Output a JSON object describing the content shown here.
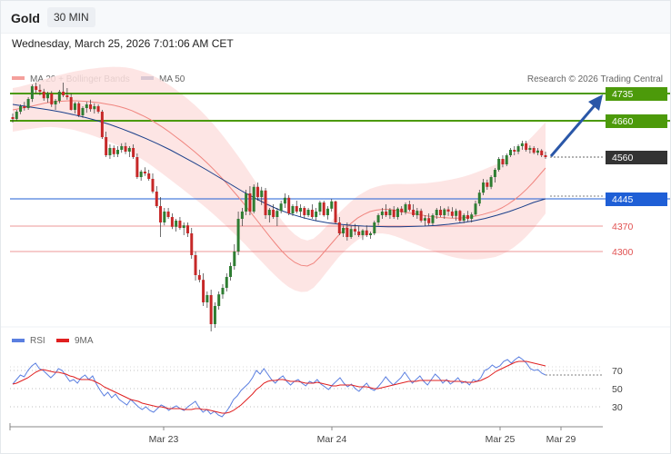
{
  "header": {
    "symbol": "Gold",
    "timeframe": "30 MIN",
    "datetime": "Wednesday, March 25, 2026 7:01:06 AM CET"
  },
  "chart_data": [
    {
      "type": "candlestick",
      "legend": [
        {
          "name": "MA 20 + Bollinger Bands",
          "color": "#f4a09c"
        },
        {
          "name": "MA 50",
          "color": "#1a3f8a"
        }
      ],
      "watermark": "Research © 2026 Trading Central",
      "ylim": [
        4040,
        4800
      ],
      "last_price": 4560,
      "levels": [
        {
          "label": "4735",
          "value": 4735,
          "color": "#4c9a0a",
          "style": "resistance"
        },
        {
          "label": "4660",
          "value": 4660,
          "color": "#4c9a0a",
          "style": "resistance"
        },
        {
          "label": "4560",
          "value": 4560,
          "color": "#333333",
          "style": "last"
        },
        {
          "label": "4445",
          "value": 4445,
          "color": "#1f5fd6",
          "style": "pivot"
        },
        {
          "label": "4370",
          "value": 4370,
          "color": "#e15252",
          "style": "support"
        },
        {
          "label": "4300",
          "value": 4300,
          "color": "#e15252",
          "style": "support"
        }
      ],
      "candles": [
        [
          4670,
          4680,
          4655,
          4665
        ],
        [
          4665,
          4690,
          4660,
          4685
        ],
        [
          4685,
          4705,
          4678,
          4700
        ],
        [
          4700,
          4712,
          4688,
          4695
        ],
        [
          4695,
          4725,
          4690,
          4720
        ],
        [
          4720,
          4760,
          4712,
          4755
        ],
        [
          4755,
          4765,
          4735,
          4745
        ],
        [
          4745,
          4760,
          4730,
          4740
        ],
        [
          4740,
          4748,
          4715,
          4722
        ],
        [
          4722,
          4740,
          4710,
          4735
        ],
        [
          4735,
          4742,
          4698,
          4705
        ],
        [
          4705,
          4720,
          4690,
          4715
        ],
        [
          4715,
          4745,
          4708,
          4740
        ],
        [
          4740,
          4765,
          4725,
          4730
        ],
        [
          4730,
          4750,
          4718,
          4725
        ],
        [
          4725,
          4735,
          4688,
          4690
        ],
        [
          4690,
          4712,
          4680,
          4708
        ],
        [
          4708,
          4712,
          4670,
          4675
        ],
        [
          4675,
          4700,
          4668,
          4695
        ],
        [
          4695,
          4712,
          4682,
          4705
        ],
        [
          4705,
          4718,
          4685,
          4692
        ],
        [
          4692,
          4708,
          4680,
          4700
        ],
        [
          4700,
          4705,
          4680,
          4685
        ],
        [
          4685,
          4690,
          4610,
          4615
        ],
        [
          4615,
          4630,
          4560,
          4565
        ],
        [
          4565,
          4595,
          4555,
          4585
        ],
        [
          4585,
          4592,
          4560,
          4568
        ],
        [
          4568,
          4590,
          4560,
          4580
        ],
        [
          4580,
          4598,
          4572,
          4590
        ],
        [
          4590,
          4600,
          4568,
          4575
        ],
        [
          4575,
          4590,
          4560,
          4585
        ],
        [
          4585,
          4595,
          4555,
          4560
        ],
        [
          4560,
          4570,
          4500,
          4505
        ],
        [
          4505,
          4525,
          4495,
          4520
        ],
        [
          4520,
          4532,
          4508,
          4515
        ],
        [
          4515,
          4525,
          4495,
          4500
        ],
        [
          4500,
          4515,
          4460,
          4465
        ],
        [
          4465,
          4480,
          4420,
          4425
        ],
        [
          4425,
          4450,
          4340,
          4380
        ],
        [
          4380,
          4420,
          4372,
          4410
        ],
        [
          4410,
          4420,
          4390,
          4395
        ],
        [
          4395,
          4405,
          4362,
          4368
        ],
        [
          4368,
          4390,
          4355,
          4385
        ],
        [
          4385,
          4395,
          4360,
          4365
        ],
        [
          4365,
          4380,
          4345,
          4372
        ],
        [
          4372,
          4380,
          4340,
          4350
        ],
        [
          4350,
          4365,
          4280,
          4290
        ],
        [
          4290,
          4300,
          4220,
          4235
        ],
        [
          4235,
          4250,
          4215,
          4222
        ],
        [
          4222,
          4240,
          4150,
          4160
        ],
        [
          4160,
          4190,
          4145,
          4180
        ],
        [
          4180,
          4195,
          4080,
          4100
        ],
        [
          4100,
          4160,
          4090,
          4150
        ],
        [
          4150,
          4190,
          4140,
          4182
        ],
        [
          4182,
          4210,
          4170,
          4200
        ],
        [
          4200,
          4240,
          4190,
          4230
        ],
        [
          4230,
          4270,
          4220,
          4260
        ],
        [
          4260,
          4320,
          4250,
          4300
        ],
        [
          4300,
          4410,
          4290,
          4390
        ],
        [
          4390,
          4420,
          4370,
          4410
        ],
        [
          4410,
          4470,
          4400,
          4460
        ],
        [
          4460,
          4480,
          4400,
          4410
        ],
        [
          4410,
          4485,
          4405,
          4478
        ],
        [
          4478,
          4490,
          4440,
          4450
        ],
        [
          4450,
          4478,
          4428,
          4468
        ],
        [
          4468,
          4475,
          4390,
          4400
        ],
        [
          4400,
          4420,
          4380,
          4415
        ],
        [
          4415,
          4430,
          4390,
          4395
        ],
        [
          4395,
          4420,
          4370,
          4412
        ],
        [
          4412,
          4440,
          4405,
          4432
        ],
        [
          4432,
          4460,
          4420,
          4448
        ],
        [
          4448,
          4455,
          4400,
          4405
        ],
        [
          4405,
          4430,
          4398,
          4425
        ],
        [
          4425,
          4440,
          4405,
          4410
        ],
        [
          4410,
          4430,
          4396,
          4420
        ],
        [
          4420,
          4425,
          4390,
          4400
        ],
        [
          4400,
          4420,
          4395,
          4415
        ],
        [
          4415,
          4430,
          4390,
          4395
        ],
        [
          4395,
          4420,
          4385,
          4410
        ],
        [
          4410,
          4440,
          4400,
          4435
        ],
        [
          4435,
          4440,
          4396,
          4400
        ],
        [
          4400,
          4425,
          4388,
          4418
        ],
        [
          4418,
          4445,
          4410,
          4438
        ],
        [
          4438,
          4440,
          4375,
          4380
        ],
        [
          4380,
          4395,
          4345,
          4350
        ],
        [
          4350,
          4372,
          4340,
          4365
        ],
        [
          4365,
          4380,
          4330,
          4340
        ],
        [
          4340,
          4370,
          4335,
          4362
        ],
        [
          4362,
          4376,
          4345,
          4355
        ],
        [
          4355,
          4370,
          4340,
          4345
        ],
        [
          4345,
          4362,
          4332,
          4358
        ],
        [
          4358,
          4372,
          4340,
          4345
        ],
        [
          4345,
          4355,
          4335,
          4350
        ],
        [
          4350,
          4385,
          4345,
          4380
        ],
        [
          4380,
          4405,
          4372,
          4400
        ],
        [
          4400,
          4420,
          4390,
          4410
        ],
        [
          4410,
          4430,
          4395,
          4400
        ],
        [
          4400,
          4420,
          4390,
          4415
        ],
        [
          4415,
          4425,
          4390,
          4395
        ],
        [
          4395,
          4422,
          4388,
          4418
        ],
        [
          4418,
          4425,
          4400,
          4408
        ],
        [
          4408,
          4435,
          4402,
          4430
        ],
        [
          4430,
          4440,
          4410,
          4415
        ],
        [
          4415,
          4430,
          4395,
          4400
        ],
        [
          4400,
          4420,
          4390,
          4412
        ],
        [
          4412,
          4418,
          4380,
          4385
        ],
        [
          4385,
          4400,
          4370,
          4392
        ],
        [
          4392,
          4405,
          4372,
          4378
        ],
        [
          4378,
          4405,
          4372,
          4400
        ],
        [
          4400,
          4420,
          4390,
          4415
        ],
        [
          4415,
          4425,
          4395,
          4400
        ],
        [
          4400,
          4420,
          4390,
          4416
        ],
        [
          4416,
          4424,
          4398,
          4410
        ],
        [
          4410,
          4422,
          4392,
          4398
        ],
        [
          4398,
          4418,
          4385,
          4412
        ],
        [
          4412,
          4415,
          4380,
          4385
        ],
        [
          4385,
          4405,
          4378,
          4400
        ],
        [
          4400,
          4412,
          4382,
          4390
        ],
        [
          4390,
          4408,
          4380,
          4402
        ],
        [
          4402,
          4440,
          4398,
          4432
        ],
        [
          4432,
          4470,
          4425,
          4462
        ],
        [
          4462,
          4500,
          4455,
          4490
        ],
        [
          4490,
          4498,
          4470,
          4478
        ],
        [
          4478,
          4510,
          4472,
          4505
        ],
        [
          4505,
          4530,
          4490,
          4525
        ],
        [
          4525,
          4560,
          4520,
          4555
        ],
        [
          4555,
          4565,
          4532,
          4540
        ],
        [
          4540,
          4570,
          4535,
          4565
        ],
        [
          4565,
          4585,
          4560,
          4580
        ],
        [
          4580,
          4590,
          4565,
          4575
        ],
        [
          4575,
          4595,
          4568,
          4590
        ],
        [
          4590,
          4605,
          4580,
          4598
        ],
        [
          4598,
          4605,
          4575,
          4580
        ],
        [
          4580,
          4592,
          4570,
          4585
        ],
        [
          4585,
          4590,
          4568,
          4572
        ],
        [
          4572,
          4585,
          4565,
          4578
        ],
        [
          4578,
          4582,
          4560,
          4565
        ],
        [
          4565,
          4575,
          4555,
          4560
        ]
      ],
      "ma20": [
        4690,
        4693,
        4697,
        4700,
        4704,
        4708,
        4711,
        4713,
        4714,
        4715,
        4715,
        4714,
        4713,
        4711,
        4709,
        4706,
        4703,
        4699,
        4694,
        4688,
        4680,
        4672,
        4663,
        4652,
        4641,
        4629,
        4616,
        4603,
        4589,
        4575,
        4560,
        4544,
        4527,
        4509,
        4490,
        4470,
        4450,
        4429,
        4407,
        4385,
        4363,
        4341,
        4320,
        4300,
        4283,
        4270,
        4262,
        4260,
        4268,
        4285,
        4305,
        4325,
        4345,
        4362,
        4378,
        4392,
        4402,
        4410,
        4414,
        4416,
        4416,
        4414,
        4411,
        4407,
        4404,
        4401,
        4398,
        4396,
        4394,
        4393,
        4392,
        4392,
        4393,
        4395,
        4398,
        4402,
        4407,
        4412,
        4420,
        4430,
        4442,
        4456,
        4472,
        4490,
        4510,
        4530
      ],
      "ma50": [
        4705,
        4700,
        4695,
        4690,
        4684,
        4677,
        4669,
        4660,
        4650,
        4638,
        4625,
        4611,
        4596,
        4580,
        4562,
        4544,
        4525,
        4505,
        4485,
        4465,
        4447,
        4430,
        4415,
        4403,
        4393,
        4385,
        4379,
        4375,
        4372,
        4370,
        4369,
        4368,
        4368,
        4369,
        4370,
        4372,
        4375,
        4379,
        4384,
        4391,
        4400,
        4410,
        4422,
        4435,
        4445
      ]
    },
    {
      "type": "line",
      "legend": [
        {
          "name": "RSI",
          "color": "#5b7fe0"
        },
        {
          "name": "9MA",
          "color": "#e02020"
        }
      ],
      "ylim": [
        15,
        90
      ],
      "yticks": [
        30,
        50,
        70
      ],
      "x_labels": [
        "Mar 23",
        "Mar 24",
        "Mar 25",
        "Mar 29"
      ],
      "rsi": [
        55,
        60,
        65,
        63,
        70,
        75,
        78,
        72,
        70,
        66,
        62,
        66,
        72,
        70,
        64,
        58,
        60,
        56,
        62,
        65,
        60,
        64,
        55,
        48,
        42,
        46,
        40,
        44,
        38,
        35,
        32,
        38,
        34,
        30,
        27,
        30,
        26,
        24,
        28,
        32,
        30,
        26,
        29,
        31,
        28,
        26,
        30,
        33,
        36,
        29,
        24,
        27,
        22,
        25,
        21,
        19,
        24,
        30,
        38,
        42,
        48,
        52,
        56,
        62,
        70,
        66,
        72,
        66,
        60,
        56,
        61,
        64,
        58,
        54,
        58,
        60,
        56,
        53,
        58,
        56,
        60,
        55,
        52,
        49,
        54,
        58,
        62,
        56,
        52,
        55,
        50,
        47,
        52,
        56,
        50,
        48,
        52,
        57,
        63,
        58,
        54,
        58,
        62,
        68,
        62,
        56,
        60,
        64,
        58,
        54,
        60,
        66,
        62,
        56,
        60,
        55,
        58,
        62,
        56,
        58,
        54,
        60,
        58,
        62,
        70,
        72,
        76,
        73,
        75,
        80,
        82,
        78,
        82,
        85,
        82,
        78,
        72,
        70,
        71,
        67,
        65
      ],
      "rsi_ma": [
        55,
        56,
        58,
        60,
        62,
        65,
        68,
        70,
        71,
        70,
        69,
        68,
        68,
        67,
        66,
        64,
        63,
        61,
        60,
        60,
        60,
        59,
        57,
        55,
        52,
        50,
        48,
        46,
        44,
        42,
        40,
        38,
        37,
        36,
        34,
        33,
        32,
        31,
        30,
        30,
        29,
        28,
        28,
        28,
        28,
        27,
        27,
        27,
        28,
        28,
        27,
        27,
        26,
        25,
        24,
        23,
        23,
        24,
        26,
        29,
        32,
        36,
        40,
        44,
        49,
        52,
        56,
        58,
        59,
        59,
        60,
        60,
        59,
        58,
        58,
        58,
        57,
        56,
        56,
        56,
        57,
        56,
        55,
        54,
        53,
        53,
        54,
        54,
        54,
        54,
        53,
        52,
        52,
        52,
        51,
        50,
        50,
        51,
        52,
        53,
        54,
        55,
        56,
        57,
        58,
        58,
        58,
        59,
        59,
        59,
        59,
        59,
        59,
        59,
        59,
        58,
        58,
        58,
        58,
        57,
        57,
        57,
        58,
        59,
        61,
        63,
        66,
        69,
        71,
        73,
        75,
        77,
        79,
        80,
        80,
        80,
        79,
        78,
        77,
        76,
        75
      ]
    }
  ]
}
